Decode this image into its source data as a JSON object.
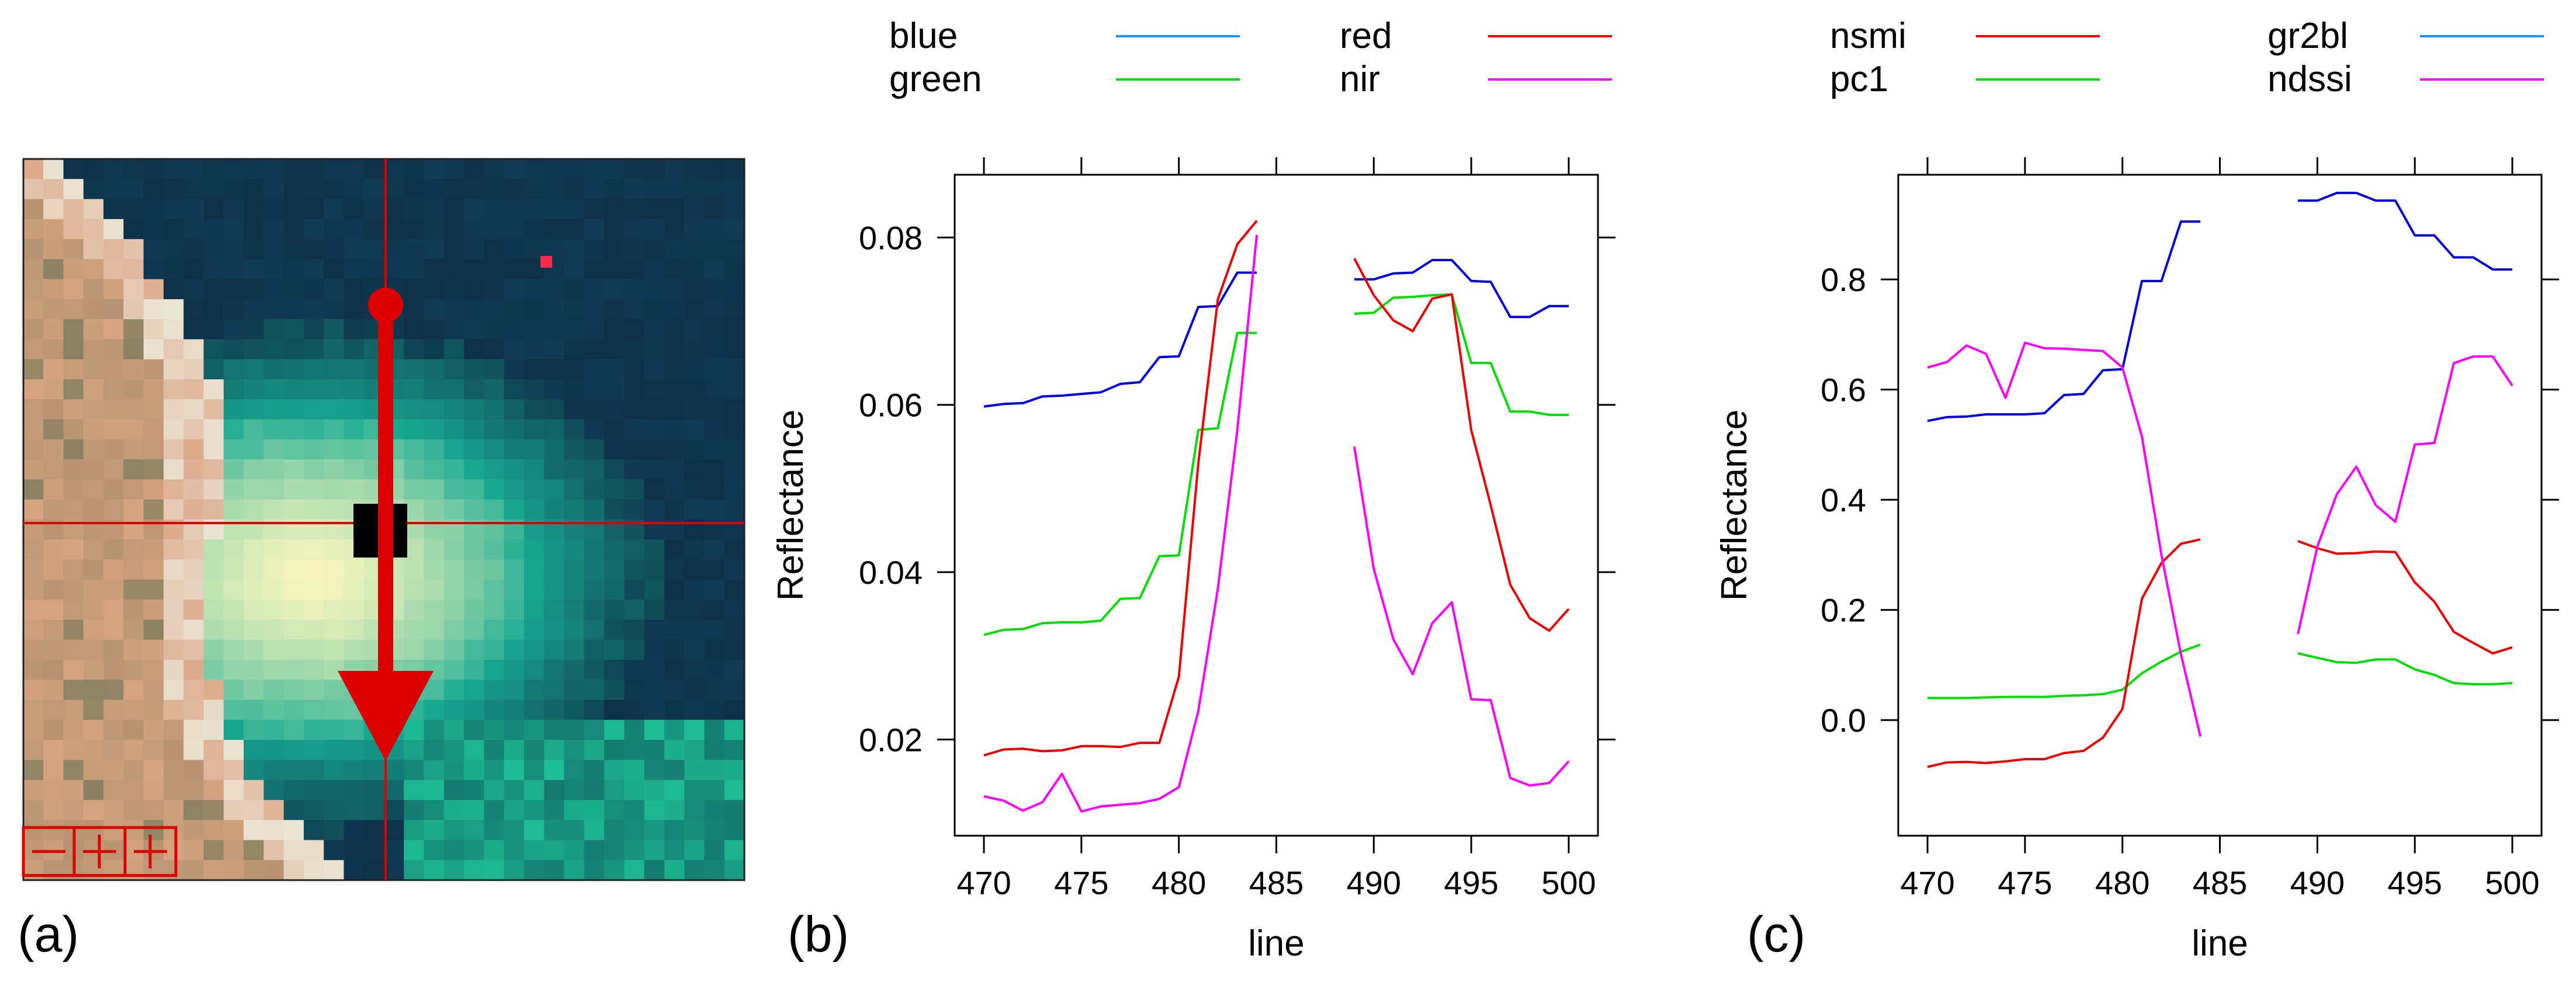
{
  "panel_labels": {
    "a": "(a)",
    "b": "(b)",
    "c": "(c)"
  },
  "colors": {
    "blue": "#0000dd",
    "green": "#00dd00",
    "red": "#ee0000",
    "magenta": "#ff00ff",
    "legend_blue": "#1e90ff",
    "image_annotation": "#dd0000"
  },
  "image_panel": {
    "description_icons": [
      "pixel-grid-image",
      "profile-arrow-icon",
      "crosshair-icon"
    ]
  },
  "chart_data": [
    {
      "type": "line",
      "panel": "b",
      "title": "",
      "xlabel": "line",
      "ylabel": "Reflectance",
      "xlim": [
        468.5,
        501.5
      ],
      "ylim": [
        0.0085,
        0.0875
      ],
      "xticks": [
        470,
        475,
        480,
        485,
        490,
        495,
        500
      ],
      "yticks": [
        0.02,
        0.04,
        0.06,
        0.08
      ],
      "ytick_labels": [
        "0.02",
        "0.04",
        "0.06",
        "0.08"
      ],
      "legend": [
        {
          "name": "blue",
          "color": "#1e90ff"
        },
        {
          "name": "green",
          "color": "#00dd00"
        },
        {
          "name": "red",
          "color": "#ee0000"
        },
        {
          "name": "nir",
          "color": "#ff00ff"
        }
      ],
      "series": [
        {
          "name": "blue",
          "color": "#0000dd",
          "segments": [
            {
              "x": [
                470,
                471,
                472,
                473,
                474,
                475,
                476,
                477,
                478,
                479,
                480,
                481,
                482,
                483,
                484
              ],
              "y": [
                0.0598,
                0.0601,
                0.0602,
                0.061,
                0.0611,
                0.0613,
                0.0615,
                0.0625,
                0.0627,
                0.0657,
                0.0658,
                0.0717,
                0.0718,
                0.0758,
                0.0758
              ]
            },
            {
              "x": [
                489,
                490,
                491,
                492,
                493,
                494,
                495,
                496,
                497,
                498,
                499,
                500
              ],
              "y": [
                0.075,
                0.075,
                0.0757,
                0.0758,
                0.0773,
                0.0773,
                0.0748,
                0.0747,
                0.0705,
                0.0705,
                0.0718,
                0.0718
              ]
            }
          ]
        },
        {
          "name": "green",
          "color": "#00dd00",
          "segments": [
            {
              "x": [
                470,
                471,
                472,
                473,
                474,
                475,
                476,
                477,
                478,
                479,
                480,
                481,
                482,
                483,
                484
              ],
              "y": [
                0.0325,
                0.0331,
                0.0332,
                0.0339,
                0.034,
                0.034,
                0.0342,
                0.0368,
                0.0369,
                0.0419,
                0.042,
                0.057,
                0.0572,
                0.0686,
                0.0686
              ]
            },
            {
              "x": [
                489,
                490,
                491,
                492,
                493,
                494,
                495,
                496,
                497,
                498,
                499,
                500
              ],
              "y": [
                0.0709,
                0.071,
                0.0728,
                0.0729,
                0.0731,
                0.0732,
                0.065,
                0.065,
                0.0592,
                0.0592,
                0.0588,
                0.0588
              ]
            }
          ]
        },
        {
          "name": "red",
          "color": "#ee0000",
          "segments": [
            {
              "x": [
                470,
                471,
                472,
                473,
                474,
                475,
                476,
                477,
                478,
                479,
                480,
                481,
                482,
                483,
                484
              ],
              "y": [
                0.0181,
                0.0188,
                0.0189,
                0.0186,
                0.0187,
                0.0192,
                0.0192,
                0.0191,
                0.0196,
                0.0196,
                0.0275,
                0.053,
                0.0726,
                0.0792,
                0.082
              ]
            },
            {
              "x": [
                489,
                490,
                491,
                492,
                493,
                494,
                495,
                496,
                497,
                498,
                499,
                500
              ],
              "y": [
                0.0775,
                0.0731,
                0.0701,
                0.0688,
                0.0727,
                0.0732,
                0.057,
                0.048,
                0.0385,
                0.0345,
                0.033,
                0.0356
              ]
            }
          ]
        },
        {
          "name": "nir",
          "color": "#ff00ff",
          "segments": [
            {
              "x": [
                470,
                471,
                472,
                473,
                474,
                475,
                476,
                477,
                478,
                479,
                480,
                481,
                482,
                483,
                484
              ],
              "y": [
                0.0132,
                0.0127,
                0.0115,
                0.0125,
                0.0159,
                0.0114,
                0.012,
                0.0122,
                0.0124,
                0.0129,
                0.0143,
                0.0234,
                0.038,
                0.057,
                0.0803
              ]
            },
            {
              "x": [
                489,
                490,
                491,
                492,
                493,
                494,
                495,
                496,
                497,
                498,
                499,
                500
              ],
              "y": [
                0.055,
                0.0404,
                0.032,
                0.0278,
                0.0339,
                0.0364,
                0.0248,
                0.0247,
                0.0154,
                0.0145,
                0.0148,
                0.0174
              ]
            }
          ]
        }
      ]
    },
    {
      "type": "line",
      "panel": "c",
      "title": "",
      "xlabel": "line",
      "ylabel": "Reflectance",
      "xlim": [
        468.5,
        501.5
      ],
      "ylim": [
        -0.21,
        0.99
      ],
      "xticks": [
        470,
        475,
        480,
        485,
        490,
        495,
        500
      ],
      "yticks": [
        0.0,
        0.2,
        0.4,
        0.6,
        0.8
      ],
      "ytick_labels": [
        "0.0",
        "0.2",
        "0.4",
        "0.6",
        "0.8"
      ],
      "legend": [
        {
          "name": "nsmi",
          "color": "#ee0000"
        },
        {
          "name": "pc1",
          "color": "#00dd00"
        },
        {
          "name": "gr2bl",
          "color": "#1e90ff"
        },
        {
          "name": "ndssi",
          "color": "#ff00ff"
        }
      ],
      "series": [
        {
          "name": "gr2bl",
          "color": "#0000dd",
          "segments": [
            {
              "x": [
                470,
                471,
                472,
                473,
                474,
                475,
                476,
                477,
                478,
                479,
                480,
                481,
                482,
                483,
                484
              ],
              "y": [
                0.543,
                0.55,
                0.551,
                0.555,
                0.555,
                0.555,
                0.557,
                0.59,
                0.592,
                0.635,
                0.637,
                0.797,
                0.797,
                0.905,
                0.905
              ]
            },
            {
              "x": [
                489,
                490,
                491,
                492,
                493,
                494,
                495,
                496,
                497,
                498,
                499,
                500
              ],
              "y": [
                0.943,
                0.943,
                0.957,
                0.957,
                0.943,
                0.943,
                0.88,
                0.88,
                0.84,
                0.84,
                0.818,
                0.818
              ]
            }
          ]
        },
        {
          "name": "pc1",
          "color": "#00dd00",
          "segments": [
            {
              "x": [
                470,
                471,
                472,
                473,
                474,
                475,
                476,
                477,
                478,
                479,
                480,
                481,
                482,
                483,
                484
              ],
              "y": [
                0.04,
                0.04,
                0.04,
                0.041,
                0.042,
                0.042,
                0.042,
                0.044,
                0.045,
                0.047,
                0.055,
                0.085,
                0.106,
                0.124,
                0.137
              ]
            },
            {
              "x": [
                489,
                490,
                491,
                492,
                493,
                494,
                495,
                496,
                497,
                498,
                499,
                500
              ],
              "y": [
                0.121,
                0.113,
                0.105,
                0.104,
                0.11,
                0.11,
                0.092,
                0.082,
                0.067,
                0.065,
                0.065,
                0.067
              ]
            }
          ]
        },
        {
          "name": "nsmi",
          "color": "#ee0000",
          "segments": [
            {
              "x": [
                470,
                471,
                472,
                473,
                474,
                475,
                476,
                477,
                478,
                479,
                480,
                481,
                482,
                483,
                484
              ],
              "y": [
                -0.085,
                -0.077,
                -0.076,
                -0.078,
                -0.075,
                -0.071,
                -0.071,
                -0.06,
                -0.056,
                -0.032,
                0.02,
                0.22,
                0.285,
                0.32,
                0.328
              ]
            },
            {
              "x": [
                489,
                490,
                491,
                492,
                493,
                494,
                495,
                496,
                497,
                498,
                499,
                500
              ],
              "y": [
                0.325,
                0.312,
                0.302,
                0.303,
                0.306,
                0.305,
                0.25,
                0.215,
                0.16,
                0.14,
                0.121,
                0.132
              ]
            }
          ]
        },
        {
          "name": "ndssi",
          "color": "#ff00ff",
          "segments": [
            {
              "x": [
                470,
                471,
                472,
                473,
                474,
                475,
                476,
                477,
                478,
                479,
                480,
                481,
                482,
                483,
                484
              ],
              "y": [
                0.64,
                0.65,
                0.68,
                0.665,
                0.585,
                0.685,
                0.675,
                0.674,
                0.672,
                0.67,
                0.64,
                0.515,
                0.3,
                0.12,
                -0.03
              ]
            },
            {
              "x": [
                489,
                490,
                491,
                492,
                493,
                494,
                495,
                496,
                497,
                498,
                499,
                500
              ],
              "y": [
                0.156,
                0.315,
                0.41,
                0.46,
                0.39,
                0.36,
                0.5,
                0.503,
                0.648,
                0.66,
                0.66,
                0.607
              ]
            }
          ]
        }
      ]
    }
  ]
}
